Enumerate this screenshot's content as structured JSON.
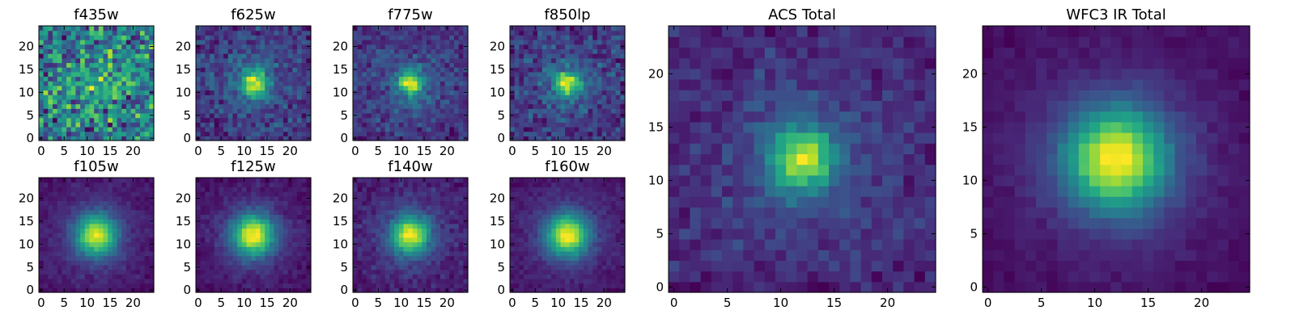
{
  "chart_data": [
    {
      "type": "heatmap",
      "title": "f435w",
      "grid_size": 25,
      "peak": [
        12,
        12
      ],
      "core_sigma": 3.5,
      "core_amp": 0.15,
      "noise": 0.55,
      "seed": 11,
      "xticks": [
        0,
        5,
        10,
        15,
        20
      ],
      "yticks": [
        0,
        5,
        10,
        15,
        20
      ],
      "xlim": [
        0,
        24
      ],
      "ylim": [
        0,
        24
      ]
    },
    {
      "type": "heatmap",
      "title": "f625w",
      "grid_size": 25,
      "peak": [
        12,
        12
      ],
      "core_sigma": 2.0,
      "core_amp": 0.8,
      "noise": 0.25,
      "seed": 23,
      "xticks": [
        0,
        5,
        10,
        15,
        20
      ],
      "yticks": [
        0,
        5,
        10,
        15,
        20
      ],
      "xlim": [
        0,
        24
      ],
      "ylim": [
        0,
        24
      ]
    },
    {
      "type": "heatmap",
      "title": "f775w",
      "grid_size": 25,
      "peak": [
        12,
        12
      ],
      "core_sigma": 1.9,
      "core_amp": 0.85,
      "noise": 0.22,
      "seed": 37,
      "xticks": [
        0,
        5,
        10,
        15,
        20
      ],
      "yticks": [
        0,
        5,
        10,
        15,
        20
      ],
      "xlim": [
        0,
        24
      ],
      "ylim": [
        0,
        24
      ]
    },
    {
      "type": "heatmap",
      "title": "f850lp",
      "grid_size": 25,
      "peak": [
        12,
        12
      ],
      "core_sigma": 1.9,
      "core_amp": 0.8,
      "noise": 0.26,
      "seed": 41,
      "xticks": [
        0,
        5,
        10,
        15,
        20
      ],
      "yticks": [
        0,
        5,
        10,
        15,
        20
      ],
      "xlim": [
        0,
        24
      ],
      "ylim": [
        0,
        24
      ]
    },
    {
      "type": "heatmap",
      "title": "f105w",
      "grid_size": 25,
      "peak": [
        12,
        12
      ],
      "core_sigma": 3.0,
      "core_amp": 1.0,
      "noise": 0.1,
      "seed": 53,
      "xticks": [
        0,
        5,
        10,
        15,
        20
      ],
      "yticks": [
        0,
        5,
        10,
        15,
        20
      ],
      "xlim": [
        0,
        24
      ],
      "ylim": [
        0,
        24
      ]
    },
    {
      "type": "heatmap",
      "title": "f125w",
      "grid_size": 25,
      "peak": [
        12,
        12
      ],
      "core_sigma": 3.0,
      "core_amp": 1.0,
      "noise": 0.09,
      "seed": 67,
      "xticks": [
        0,
        5,
        10,
        15,
        20
      ],
      "yticks": [
        0,
        5,
        10,
        15,
        20
      ],
      "xlim": [
        0,
        24
      ],
      "ylim": [
        0,
        24
      ]
    },
    {
      "type": "heatmap",
      "title": "f140w",
      "grid_size": 25,
      "peak": [
        12,
        12
      ],
      "core_sigma": 2.7,
      "core_amp": 1.0,
      "noise": 0.13,
      "seed": 79,
      "xticks": [
        0,
        5,
        10,
        15,
        20
      ],
      "yticks": [
        0,
        5,
        10,
        15,
        20
      ],
      "xlim": [
        0,
        24
      ],
      "ylim": [
        0,
        24
      ]
    },
    {
      "type": "heatmap",
      "title": "f160w",
      "grid_size": 25,
      "peak": [
        12,
        12
      ],
      "core_sigma": 3.0,
      "core_amp": 1.0,
      "noise": 0.09,
      "seed": 83,
      "xticks": [
        0,
        5,
        10,
        15,
        20
      ],
      "yticks": [
        0,
        5,
        10,
        15,
        20
      ],
      "xlim": [
        0,
        24
      ],
      "ylim": [
        0,
        24
      ]
    },
    {
      "type": "heatmap",
      "title": "ACS Total",
      "grid_size": 25,
      "peak": [
        12,
        12
      ],
      "core_sigma": 2.0,
      "core_amp": 1.0,
      "noise": 0.18,
      "seed": 97,
      "xticks": [
        0,
        5,
        10,
        15,
        20
      ],
      "yticks": [
        0,
        5,
        10,
        15,
        20
      ],
      "xlim": [
        0,
        24
      ],
      "ylim": [
        0,
        24
      ]
    },
    {
      "type": "heatmap",
      "title": "WFC3 IR Total",
      "grid_size": 25,
      "peak": [
        12,
        12
      ],
      "core_sigma": 3.2,
      "core_amp": 1.0,
      "noise": 0.06,
      "seed": 101,
      "xticks": [
        0,
        5,
        10,
        15,
        20
      ],
      "yticks": [
        0,
        5,
        10,
        15,
        20
      ],
      "xlim": [
        0,
        24
      ],
      "ylim": [
        0,
        24
      ]
    }
  ],
  "colormap": "viridis"
}
